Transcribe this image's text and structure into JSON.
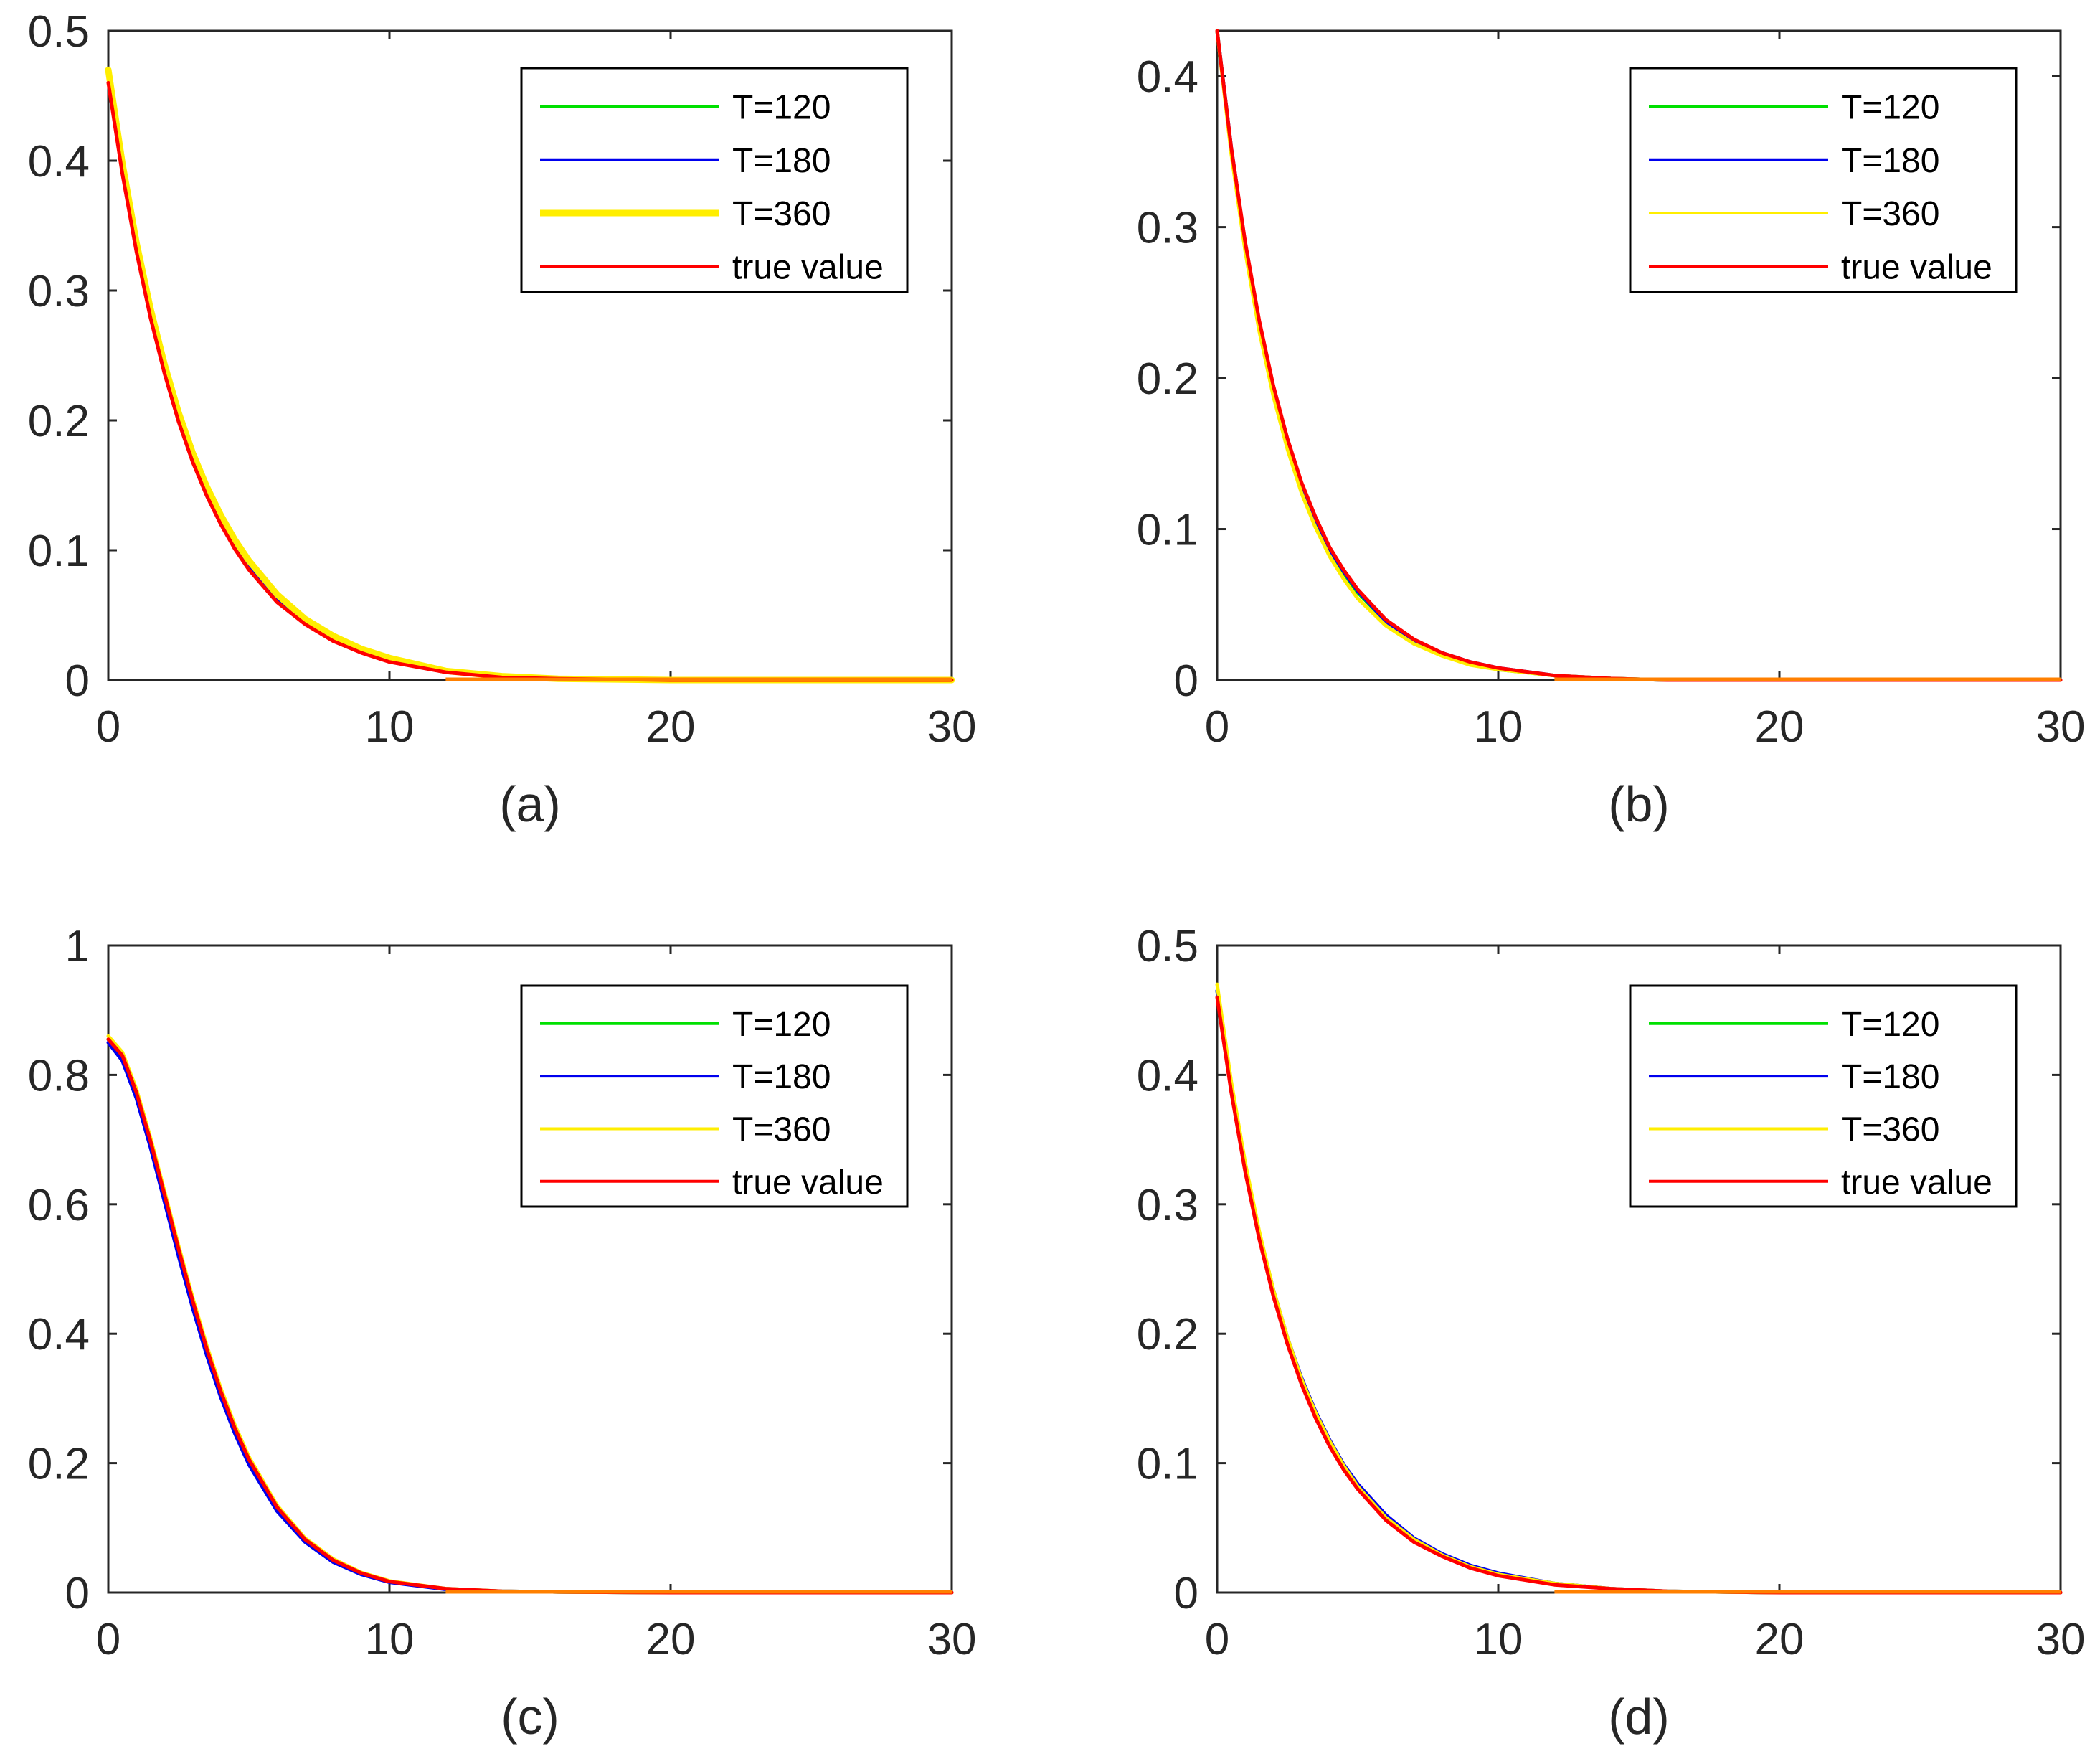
{
  "figure": {
    "panels_order": [
      "a",
      "b",
      "c",
      "d"
    ]
  },
  "colors": {
    "T120": "#00e000",
    "T180": "#0000ee",
    "T360": "#ffee00",
    "true": "#ff0000",
    "axis": "#262626",
    "overlap_tail": "#ff8000"
  },
  "chart_data": [
    {
      "type": "line",
      "panel": "a",
      "caption": "(a)",
      "xlim": [
        0,
        30
      ],
      "ylim": [
        0,
        0.5
      ],
      "xticks": [
        0,
        10,
        20,
        30
      ],
      "xtick_labels": [
        "0",
        "10",
        "20",
        "30"
      ],
      "yticks": [
        0,
        0.1,
        0.2,
        0.3,
        0.4,
        0.5
      ],
      "ytick_labels": [
        "0",
        "0.1",
        "0.2",
        "0.3",
        "0.4",
        "0.5"
      ],
      "legend": [
        "T=120",
        "T=180",
        "T=360",
        "true value"
      ],
      "legend_position": "top-right",
      "x": [
        0,
        0.5,
        1,
        1.5,
        2,
        2.5,
        3,
        3.5,
        4,
        4.5,
        5,
        6,
        7,
        8,
        9,
        10,
        12,
        14,
        16,
        20,
        25,
        30
      ],
      "series": [
        {
          "name": "T=120",
          "color_key": "T120",
          "values": [
            0.465,
            0.394,
            0.333,
            0.282,
            0.239,
            0.202,
            0.171,
            0.145,
            0.123,
            0.104,
            0.088,
            0.062,
            0.044,
            0.032,
            0.022,
            0.015,
            0.006,
            0.003,
            0.001,
            0.0,
            0.0,
            0.0
          ]
        },
        {
          "name": "T=180",
          "color_key": "T180",
          "values": [
            0.465,
            0.393,
            0.332,
            0.281,
            0.238,
            0.201,
            0.17,
            0.144,
            0.122,
            0.103,
            0.087,
            0.061,
            0.044,
            0.031,
            0.022,
            0.015,
            0.006,
            0.003,
            0.001,
            0.0,
            0.0,
            0.0
          ]
        },
        {
          "name": "T=360",
          "color_key": "T360",
          "values": [
            0.47,
            0.398,
            0.337,
            0.286,
            0.243,
            0.206,
            0.175,
            0.149,
            0.127,
            0.108,
            0.092,
            0.066,
            0.047,
            0.034,
            0.024,
            0.017,
            0.007,
            0.003,
            0.001,
            0.0,
            0.0,
            0.0
          ]
        },
        {
          "name": "true value",
          "color_key": "true",
          "values": [
            0.46,
            0.39,
            0.33,
            0.279,
            0.236,
            0.199,
            0.168,
            0.142,
            0.12,
            0.101,
            0.085,
            0.06,
            0.043,
            0.03,
            0.021,
            0.014,
            0.006,
            0.002,
            0.001,
            0.0,
            0.0,
            0.0
          ]
        }
      ]
    },
    {
      "type": "line",
      "panel": "b",
      "caption": "(b)",
      "xlim": [
        0,
        30
      ],
      "ylim": [
        0,
        0.43
      ],
      "xticks": [
        0,
        10,
        20,
        30
      ],
      "xtick_labels": [
        "0",
        "10",
        "20",
        "30"
      ],
      "yticks": [
        0,
        0.1,
        0.2,
        0.3,
        0.4
      ],
      "ytick_labels": [
        "0",
        "0.1",
        "0.2",
        "0.3",
        "0.4"
      ],
      "legend": [
        "T=120",
        "T=180",
        "T=360",
        "true value"
      ],
      "legend_position": "top-right",
      "x": [
        0,
        0.5,
        1,
        1.5,
        2,
        2.5,
        3,
        3.5,
        4,
        4.5,
        5,
        6,
        7,
        8,
        9,
        10,
        12,
        14,
        16,
        20,
        25,
        30
      ],
      "series": [
        {
          "name": "T=120",
          "color_key": "T120",
          "values": [
            0.43,
            0.352,
            0.288,
            0.236,
            0.193,
            0.158,
            0.129,
            0.106,
            0.087,
            0.071,
            0.058,
            0.039,
            0.026,
            0.017,
            0.011,
            0.007,
            0.003,
            0.001,
            0.0,
            0.0,
            0.0,
            0.0
          ]
        },
        {
          "name": "T=180",
          "color_key": "T180",
          "values": [
            0.43,
            0.353,
            0.289,
            0.237,
            0.194,
            0.159,
            0.13,
            0.107,
            0.087,
            0.072,
            0.059,
            0.039,
            0.026,
            0.018,
            0.012,
            0.008,
            0.003,
            0.001,
            0.0,
            0.0,
            0.0,
            0.0
          ]
        },
        {
          "name": "T=360",
          "color_key": "T360",
          "values": [
            0.43,
            0.349,
            0.284,
            0.231,
            0.188,
            0.153,
            0.124,
            0.101,
            0.082,
            0.067,
            0.054,
            0.036,
            0.024,
            0.016,
            0.01,
            0.007,
            0.003,
            0.001,
            0.0,
            0.0,
            0.0,
            0.0
          ]
        },
        {
          "name": "true value",
          "color_key": "true",
          "values": [
            0.43,
            0.353,
            0.29,
            0.238,
            0.195,
            0.16,
            0.131,
            0.108,
            0.088,
            0.073,
            0.06,
            0.04,
            0.027,
            0.018,
            0.012,
            0.008,
            0.003,
            0.001,
            0.0,
            0.0,
            0.0,
            0.0
          ]
        }
      ]
    },
    {
      "type": "line",
      "panel": "c",
      "caption": "(c)",
      "xlim": [
        0,
        30
      ],
      "ylim": [
        0,
        1
      ],
      "xticks": [
        0,
        10,
        20,
        30
      ],
      "xtick_labels": [
        "0",
        "10",
        "20",
        "30"
      ],
      "yticks": [
        0,
        0.2,
        0.4,
        0.6,
        0.8,
        1
      ],
      "ytick_labels": [
        "0",
        "0.2",
        "0.4",
        "0.6",
        "0.8",
        "1"
      ],
      "legend": [
        "T=120",
        "T=180",
        "T=360",
        "true value"
      ],
      "legend_position": "top-right",
      "x": [
        0,
        0.5,
        1,
        1.5,
        2,
        2.5,
        3,
        3.5,
        4,
        4.5,
        5,
        6,
        7,
        8,
        9,
        10,
        12,
        14,
        16,
        20,
        25,
        30
      ],
      "series": [
        {
          "name": "T=120",
          "color_key": "T120",
          "values": [
            0.855,
            0.828,
            0.77,
            0.694,
            0.61,
            0.526,
            0.446,
            0.372,
            0.307,
            0.25,
            0.202,
            0.129,
            0.08,
            0.049,
            0.029,
            0.017,
            0.006,
            0.002,
            0.001,
            0.0,
            0.0,
            0.0
          ]
        },
        {
          "name": "T=180",
          "color_key": "T180",
          "values": [
            0.85,
            0.822,
            0.764,
            0.688,
            0.604,
            0.52,
            0.44,
            0.367,
            0.302,
            0.246,
            0.198,
            0.126,
            0.078,
            0.047,
            0.028,
            0.016,
            0.005,
            0.002,
            0.001,
            0.0,
            0.0,
            0.0
          ]
        },
        {
          "name": "T=360",
          "color_key": "T360",
          "values": [
            0.86,
            0.835,
            0.778,
            0.703,
            0.62,
            0.536,
            0.456,
            0.382,
            0.316,
            0.259,
            0.21,
            0.135,
            0.084,
            0.052,
            0.031,
            0.018,
            0.006,
            0.002,
            0.001,
            0.0,
            0.0,
            0.0
          ]
        },
        {
          "name": "true value",
          "color_key": "true",
          "values": [
            0.855,
            0.83,
            0.773,
            0.698,
            0.615,
            0.531,
            0.451,
            0.377,
            0.311,
            0.254,
            0.206,
            0.132,
            0.082,
            0.05,
            0.03,
            0.017,
            0.006,
            0.002,
            0.001,
            0.0,
            0.0,
            0.0
          ]
        }
      ]
    },
    {
      "type": "line",
      "panel": "d",
      "caption": "(d)",
      "xlim": [
        0,
        30
      ],
      "ylim": [
        0,
        0.5
      ],
      "xticks": [
        0,
        10,
        20,
        30
      ],
      "xtick_labels": [
        "0",
        "10",
        "20",
        "30"
      ],
      "yticks": [
        0,
        0.1,
        0.2,
        0.3,
        0.4,
        0.5
      ],
      "ytick_labels": [
        "0",
        "0.1",
        "0.2",
        "0.3",
        "0.4",
        "0.5"
      ],
      "legend": [
        "T=120",
        "T=180",
        "T=360",
        "true value"
      ],
      "legend_position": "top-right",
      "x": [
        0,
        0.5,
        1,
        1.5,
        2,
        2.5,
        3,
        3.5,
        4,
        4.5,
        5,
        6,
        7,
        8,
        9,
        10,
        12,
        14,
        16,
        20,
        25,
        30
      ],
      "series": [
        {
          "name": "T=120",
          "color_key": "T120",
          "values": [
            0.465,
            0.391,
            0.328,
            0.276,
            0.232,
            0.195,
            0.164,
            0.138,
            0.116,
            0.097,
            0.082,
            0.058,
            0.041,
            0.029,
            0.02,
            0.014,
            0.007,
            0.003,
            0.001,
            0.0,
            0.0,
            0.0
          ]
        },
        {
          "name": "T=180",
          "color_key": "T180",
          "values": [
            0.465,
            0.392,
            0.33,
            0.278,
            0.234,
            0.197,
            0.166,
            0.14,
            0.118,
            0.099,
            0.084,
            0.06,
            0.042,
            0.03,
            0.021,
            0.015,
            0.007,
            0.003,
            0.001,
            0.0,
            0.0,
            0.0
          ]
        },
        {
          "name": "T=360",
          "color_key": "T360",
          "values": [
            0.47,
            0.395,
            0.332,
            0.279,
            0.234,
            0.197,
            0.165,
            0.139,
            0.117,
            0.098,
            0.082,
            0.058,
            0.041,
            0.029,
            0.02,
            0.014,
            0.007,
            0.003,
            0.001,
            0.0,
            0.0,
            0.0
          ]
        },
        {
          "name": "true value",
          "color_key": "true",
          "values": [
            0.46,
            0.387,
            0.325,
            0.273,
            0.229,
            0.192,
            0.161,
            0.135,
            0.113,
            0.095,
            0.08,
            0.056,
            0.039,
            0.028,
            0.019,
            0.013,
            0.006,
            0.003,
            0.001,
            0.0,
            0.0,
            0.0
          ]
        }
      ]
    }
  ]
}
